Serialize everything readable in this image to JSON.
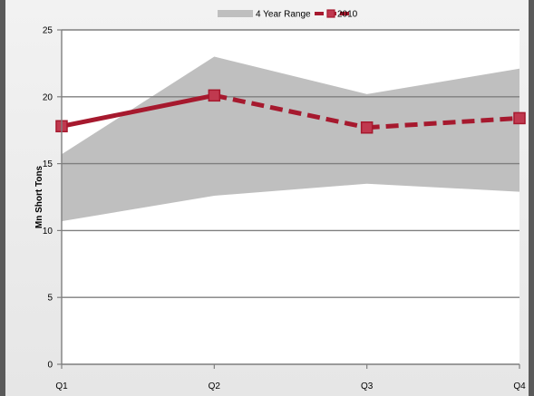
{
  "chart_data": {
    "type": "line",
    "title": "",
    "xlabel": "",
    "ylabel": "Mn Short Tons",
    "categories": [
      "Q1",
      "Q2",
      "Q3",
      "Q4"
    ],
    "ylim": [
      0,
      25
    ],
    "yticks": [
      0,
      5,
      10,
      15,
      20,
      25
    ],
    "grid": "horizontal",
    "legend": "top-center",
    "series": [
      {
        "name": "4 Year Range",
        "kind": "range-area",
        "color": "#bfbfbf",
        "low": [
          10.7,
          12.6,
          13.5,
          12.9
        ],
        "high": [
          15.7,
          23.0,
          20.2,
          22.1
        ]
      },
      {
        "name": "2010",
        "kind": "line",
        "color": "#a6192e",
        "marker_fill": "#c0394f",
        "values": [
          17.8,
          20.1,
          17.7,
          18.4
        ],
        "solid_segments": [
          0
        ],
        "dashed_segments": [
          1,
          2
        ]
      }
    ]
  }
}
